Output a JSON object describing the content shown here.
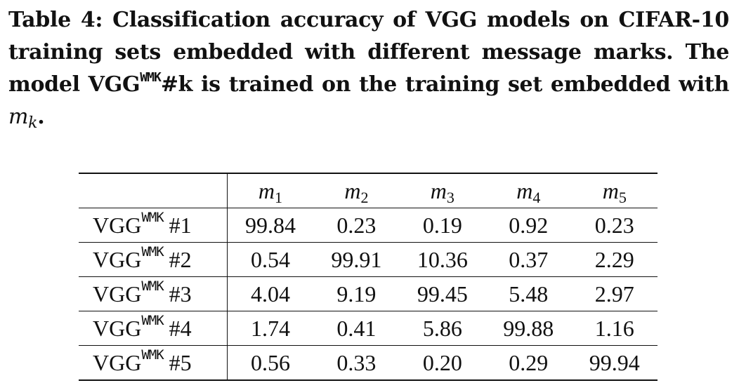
{
  "caption": {
    "label": "Table 4:",
    "text_a": "Classification accuracy of VGG models on CIFAR-10 training sets embedded with different message marks. The model ",
    "model_base": "VGG",
    "model_sup": "WMK",
    "text_b": "#k is trained on the training set embedded with ",
    "math_var": "m",
    "math_sub": "k",
    "text_end": "."
  },
  "table": {
    "columns": [
      {
        "var": "m",
        "sub": "1"
      },
      {
        "var": "m",
        "sub": "2"
      },
      {
        "var": "m",
        "sub": "3"
      },
      {
        "var": "m",
        "sub": "4"
      },
      {
        "var": "m",
        "sub": "5"
      }
    ],
    "rows": [
      {
        "base": "VGG",
        "sup": "WMK",
        "num": "#1",
        "values": [
          "99.84",
          "0.23",
          "0.19",
          "0.92",
          "0.23"
        ]
      },
      {
        "base": "VGG",
        "sup": "WMK",
        "num": "#2",
        "values": [
          "0.54",
          "99.91",
          "10.36",
          "0.37",
          "2.29"
        ]
      },
      {
        "base": "VGG",
        "sup": "WMK",
        "num": "#3",
        "values": [
          "4.04",
          "9.19",
          "99.45",
          "5.48",
          "2.97"
        ]
      },
      {
        "base": "VGG",
        "sup": "WMK",
        "num": "#4",
        "values": [
          "1.74",
          "0.41",
          "5.86",
          "99.88",
          "1.16"
        ]
      },
      {
        "base": "VGG",
        "sup": "WMK",
        "num": "#5",
        "values": [
          "0.56",
          "0.33",
          "0.20",
          "0.29",
          "99.94"
        ]
      }
    ]
  }
}
